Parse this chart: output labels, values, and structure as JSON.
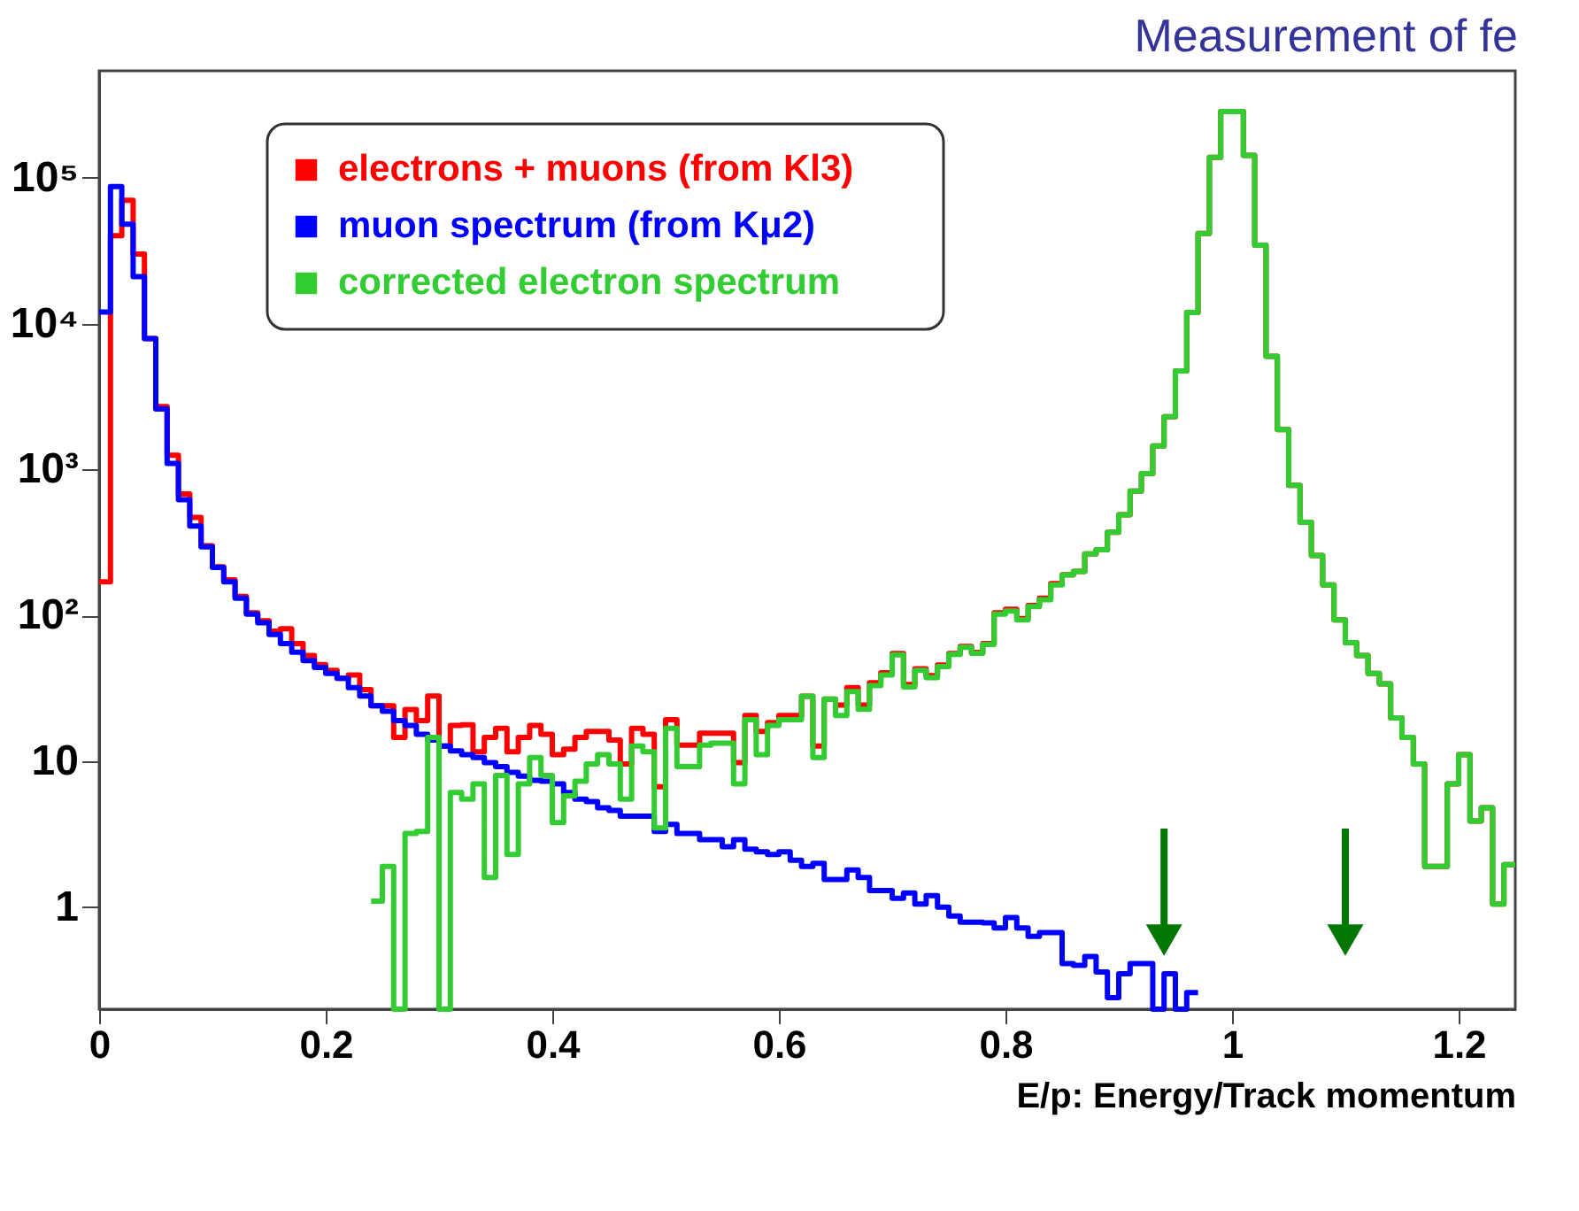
{
  "chart_data": {
    "type": "histogram",
    "title": "Measurement of fe",
    "xlabel": "E/p: Energy/Track momentum",
    "bins": [
      0,
      0.01,
      0.02,
      0.03,
      0.04,
      0.05,
      0.06,
      0.07,
      0.08,
      0.09,
      0.1,
      0.11,
      0.12,
      0.13,
      0.14,
      0.15,
      0.16,
      0.17,
      0.18,
      0.19,
      0.2,
      0.21,
      0.22,
      0.23,
      0.24,
      0.25,
      0.26,
      0.27,
      0.28,
      0.29,
      0.3,
      0.31,
      0.32,
      0.33,
      0.34,
      0.35,
      0.36,
      0.37,
      0.38,
      0.39,
      0.4,
      0.41,
      0.42,
      0.43,
      0.44,
      0.45,
      0.46,
      0.47,
      0.48,
      0.49,
      0.5,
      0.51,
      0.52,
      0.53,
      0.54,
      0.55,
      0.56,
      0.57,
      0.58,
      0.59,
      0.6,
      0.61,
      0.62,
      0.63,
      0.64,
      0.65,
      0.66,
      0.67,
      0.68,
      0.69,
      0.7,
      0.71,
      0.72,
      0.73,
      0.74,
      0.75,
      0.76,
      0.77,
      0.78,
      0.79,
      0.8,
      0.81,
      0.82,
      0.83,
      0.84,
      0.85,
      0.86,
      0.87,
      0.88,
      0.89,
      0.9,
      0.91,
      0.92,
      0.93,
      0.94,
      0.95,
      0.96,
      0.97,
      0.98,
      0.99,
      1,
      1.01,
      1.02,
      1.03,
      1.04,
      1.05,
      1.06,
      1.07,
      1.08,
      1.09,
      1.1,
      1.11,
      1.12,
      1.13,
      1.14,
      1.15,
      1.16,
      1.17,
      1.18,
      1.19,
      1.2,
      1.21,
      1.22,
      1.23,
      1.24,
      1.25
    ],
    "series": [
      {
        "name": "electrons + muons (from Kl3)",
        "color": "#ff0000",
        "values": [
          170,
          40000,
          70000,
          30000,
          7900,
          2700,
          1250,
          680,
          470,
          300,
          215,
          175,
          135,
          104,
          92,
          78,
          81,
          64,
          53,
          46,
          42,
          37,
          39,
          31,
          24,
          24,
          14.6,
          22.6,
          19,
          28,
          12.7,
          17.6,
          17.8,
          11.6,
          14.6,
          16.8,
          11.6,
          14.6,
          17.6,
          15.3,
          11.1,
          12.1,
          14.6,
          16,
          16,
          14,
          9.6,
          16.8,
          15.3,
          6.7,
          19.3,
          12.9,
          12.9,
          15.6,
          15.6,
          15.6,
          9.8,
          20.6,
          16,
          18.4,
          20.6,
          20.6,
          27.9,
          12.7,
          26.7,
          24.3,
          32,
          24.3,
          34.5,
          40.4,
          54.8,
          33.6,
          43.1,
          38.6,
          45.6,
          54.8,
          61.2,
          55.8,
          64.1,
          104,
          110,
          95,
          117,
          131,
          165,
          190,
          200,
          264,
          282,
          371,
          490,
          711,
          938,
          1450,
          2300,
          4730,
          11900,
          41500,
          138000,
          284000,
          284000,
          142000,
          34500,
          5960,
          1880,
          779,
          435,
          257,
          162,
          93,
          65,
          53,
          40,
          34,
          19.8,
          14.6,
          9.6,
          1.9,
          1.9,
          7.0,
          11.1,
          3.9,
          4.8,
          1.05,
          1.96
        ]
      },
      {
        "name": "muon spectrum (from Kμ2)",
        "color": "#0000ff",
        "bins": [
          0,
          0.01,
          0.02,
          0.03,
          0.04,
          0.05,
          0.06,
          0.07,
          0.08,
          0.09,
          0.1,
          0.11,
          0.12,
          0.13,
          0.14,
          0.15,
          0.16,
          0.17,
          0.18,
          0.19,
          0.2,
          0.21,
          0.22,
          0.23,
          0.24,
          0.25,
          0.26,
          0.27,
          0.28,
          0.29,
          0.3,
          0.31,
          0.32,
          0.33,
          0.34,
          0.35,
          0.36,
          0.37,
          0.38,
          0.39,
          0.4,
          0.41,
          0.42,
          0.43,
          0.44,
          0.45,
          0.46,
          0.47,
          0.48,
          0.49,
          0.5,
          0.51,
          0.52,
          0.53,
          0.54,
          0.55,
          0.56,
          0.57,
          0.58,
          0.59,
          0.6,
          0.61,
          0.62,
          0.63,
          0.64,
          0.65,
          0.66,
          0.67,
          0.68,
          0.69,
          0.7,
          0.71,
          0.72,
          0.73,
          0.74,
          0.75,
          0.76,
          0.77,
          0.78,
          0.79,
          0.8,
          0.81,
          0.82,
          0.83,
          0.84,
          0.85,
          0.86,
          0.87,
          0.88,
          0.89,
          0.9,
          0.91,
          0.92,
          0.93,
          0.94,
          0.95,
          0.96,
          0.97
        ],
        "values": [
          12000,
          87000,
          48000,
          21000,
          7900,
          2600,
          1100,
          620,
          410,
          295,
          213,
          170,
          131,
          102,
          89,
          74,
          64,
          56,
          49,
          44,
          40,
          37,
          32,
          28,
          24,
          22,
          19,
          17.6,
          15.3,
          14,
          12.7,
          11.8,
          11.1,
          10.6,
          9.8,
          9.2,
          8.4,
          7.9,
          7.4,
          7.3,
          7.0,
          6.1,
          5.5,
          5.3,
          4.8,
          4.6,
          4.2,
          4.2,
          4.2,
          3.3,
          3.7,
          3.2,
          3.2,
          2.9,
          2.9,
          2.6,
          2.9,
          2.5,
          2.4,
          2.3,
          2.4,
          2.1,
          1.9,
          2.0,
          1.55,
          1.55,
          1.8,
          1.6,
          1.3,
          1.3,
          1.15,
          1.25,
          1.05,
          1.2,
          1.0,
          0.87,
          0.79,
          0.79,
          0.78,
          0.72,
          0.85,
          0.72,
          0.63,
          0.67,
          0.67,
          0.41,
          0.4,
          0.46,
          0.36,
          0.24,
          0.35,
          0.41,
          0.41,
          null,
          0.35,
          null,
          0.26
        ]
      },
      {
        "name": "corrected electron spectrum",
        "color": "#33cc33",
        "bins": [
          0.24,
          0.25,
          0.26,
          0.27,
          0.28,
          0.29,
          0.3,
          0.31,
          0.32,
          0.33,
          0.34,
          0.35,
          0.36,
          0.37,
          0.38,
          0.39,
          0.4,
          0.41,
          0.42,
          0.43,
          0.44,
          0.45,
          0.46,
          0.47,
          0.48,
          0.49,
          0.5,
          0.51,
          0.52,
          0.53,
          0.54,
          0.55,
          0.56,
          0.57,
          0.58,
          0.59,
          0.6,
          0.61,
          0.62,
          0.63,
          0.64,
          0.65,
          0.66,
          0.67,
          0.68,
          0.69,
          0.7,
          0.71,
          0.72,
          0.73,
          0.74,
          0.75,
          0.76,
          0.77,
          0.78,
          0.79,
          0.8,
          0.81,
          0.82,
          0.83,
          0.84,
          0.85,
          0.86,
          0.87,
          0.88,
          0.89,
          0.9,
          0.91,
          0.92,
          0.93,
          0.94,
          0.95,
          0.96,
          0.97,
          0.98,
          0.99,
          1,
          1.01,
          1.02,
          1.03,
          1.04,
          1.05,
          1.06,
          1.07,
          1.08,
          1.09,
          1.1,
          1.11,
          1.12,
          1.13,
          1.14,
          1.15,
          1.16,
          1.17,
          1.18,
          1.19,
          1.2,
          1.21,
          1.22,
          1.23,
          1.24,
          1.25
        ],
        "values": [
          1.1,
          1.9,
          null,
          3.2,
          3.3,
          14.6,
          null,
          6.1,
          5.5,
          7.0,
          1.6,
          8.0,
          2.3,
          7.0,
          10.6,
          8.0,
          3.8,
          5.8,
          7.3,
          9.6,
          11.1,
          9.6,
          5.5,
          12.7,
          11.6,
          3.5,
          16.8,
          9.2,
          9.2,
          12.9,
          13.3,
          13.3,
          7.0,
          19.3,
          11.1,
          17.6,
          19.3,
          19.3,
          27.9,
          10.6,
          26.7,
          20.6,
          30,
          22.7,
          33,
          39,
          53.6,
          32.3,
          42,
          37.4,
          44.6,
          54,
          60.4,
          55,
          63.3,
          102,
          107,
          93,
          115,
          128,
          162,
          189,
          200,
          264,
          282,
          371,
          490,
          711,
          938,
          1450,
          2300,
          4730,
          11900,
          41500,
          138000,
          284000,
          284000,
          142000,
          34500,
          5960,
          1880,
          779,
          435,
          257,
          162,
          93,
          65,
          53,
          40,
          34,
          19.8,
          14.6,
          9.6,
          1.9,
          1.9,
          7.0,
          11.1,
          3.9,
          4.8,
          1.05,
          1.96
        ]
      }
    ],
    "xlim": [
      0,
      1.25
    ],
    "xticks": [
      0,
      0.2,
      0.4,
      0.6,
      0.8,
      1,
      1.2
    ],
    "ylim": [
      0.2,
      540000
    ],
    "yticks": [
      1,
      10,
      {
        "value": 100,
        "label": "10²"
      },
      {
        "value": 1000,
        "label": "10³"
      },
      {
        "value": 10000,
        "label": "10⁴"
      },
      {
        "value": 100000,
        "label": "10⁵"
      }
    ],
    "log": true,
    "grid": false,
    "legend": "top left",
    "ref_lines": [
      {
        "axis": "x",
        "value": 0.94,
        "color": "#007700"
      },
      {
        "axis": "x",
        "value": 1.1,
        "color": "#007700"
      }
    ]
  }
}
